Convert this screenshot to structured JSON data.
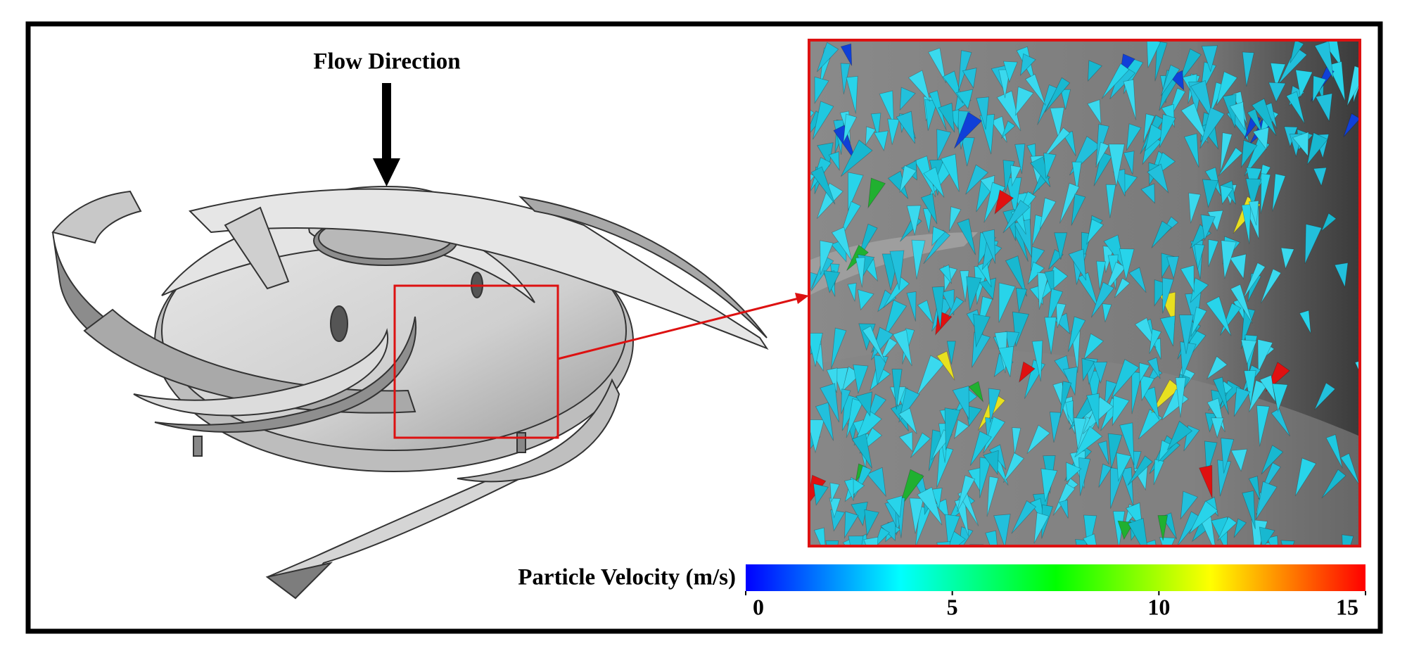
{
  "annotation": "Flow Direction",
  "colorbar": {
    "label": "Particle Velocity (m/s)",
    "lim": [
      0,
      15
    ],
    "ticks": [
      0,
      5,
      10,
      15
    ],
    "colors": [
      "#0000ff",
      "#00ffff",
      "#00ff00",
      "#ffff00",
      "#ff0000"
    ]
  }
}
